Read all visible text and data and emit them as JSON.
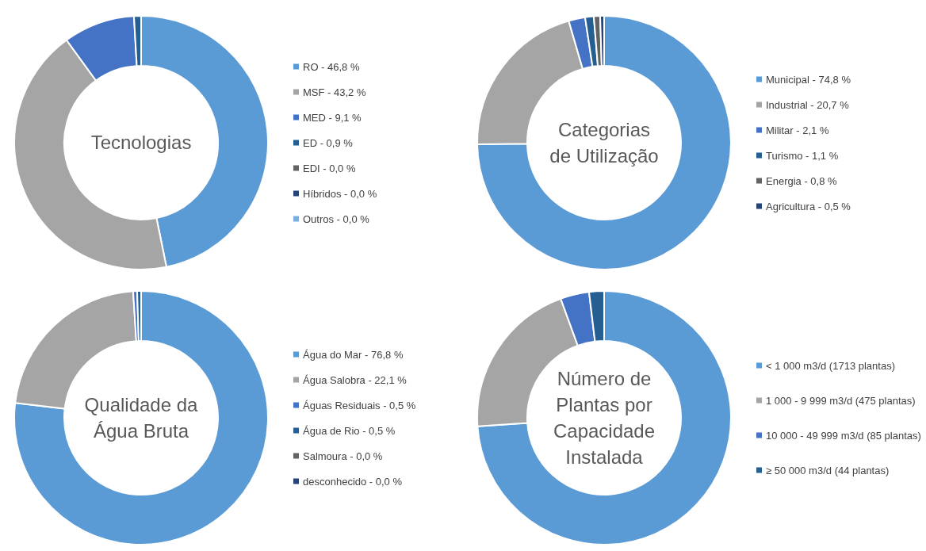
{
  "chart_data": [
    {
      "type": "donut",
      "title": "Tecnologias",
      "categories": [
        "RO",
        "MSF",
        "MED",
        "ED",
        "EDI",
        "Híbridos",
        "Outros"
      ],
      "values": [
        46.8,
        43.2,
        9.1,
        0.9,
        0.0,
        0.0,
        0.0
      ],
      "value_labels": [
        "46,8 %",
        "43,2 %",
        "9,1 %",
        "0,9 %",
        "0,0 %",
        "0,0 %",
        "0,0 %"
      ],
      "colors": [
        "#5b9bd5",
        "#a5a5a5",
        "#4472c4",
        "#255e91",
        "#636363",
        "#264478",
        "#7cafdd"
      ],
      "legend": "right"
    },
    {
      "type": "donut",
      "title": "Categorias\nde Utilização",
      "categories": [
        "Municipal",
        "Industrial",
        "Militar",
        "Turismo",
        "Energia",
        "Agricultura"
      ],
      "values": [
        74.8,
        20.7,
        2.1,
        1.1,
        0.8,
        0.5
      ],
      "value_labels": [
        "74,8 %",
        "20,7 %",
        "2,1 %",
        "1,1 %",
        "0,8 %",
        "0,5 %"
      ],
      "colors": [
        "#5b9bd5",
        "#a5a5a5",
        "#4472c4",
        "#255e91",
        "#636363",
        "#264478"
      ],
      "legend": "right"
    },
    {
      "type": "donut",
      "title": "Qualidade da\nÁgua Bruta",
      "categories": [
        "Água do Mar",
        "Água Salobra",
        "Águas Residuais",
        "Água de Rio",
        "Salmoura",
        "desconhecido"
      ],
      "values": [
        76.8,
        22.1,
        0.5,
        0.5,
        0.0,
        0.0
      ],
      "value_labels": [
        "76,8 %",
        "22,1 %",
        "0,5 %",
        "0,5 %",
        "0,0 %",
        "0,0 %"
      ],
      "colors": [
        "#5b9bd5",
        "#a5a5a5",
        "#4472c4",
        "#255e91",
        "#636363",
        "#264478"
      ],
      "legend": "right"
    },
    {
      "type": "donut",
      "title": "Número de\nPlantas por\nCapacidade\nInstalada",
      "categories": [
        "< 1 000 m3/d (1713 plantas)",
        "1 000 - 9 999 m3/d (475 plantas)",
        "10 000 - 49 999 m3/d (85 plantas)",
        "≥ 50 000 m3/d (44 plantas)"
      ],
      "values": [
        1713,
        475,
        85,
        44
      ],
      "colors": [
        "#5b9bd5",
        "#a5a5a5",
        "#4472c4",
        "#255e91"
      ],
      "legend": "right"
    }
  ]
}
